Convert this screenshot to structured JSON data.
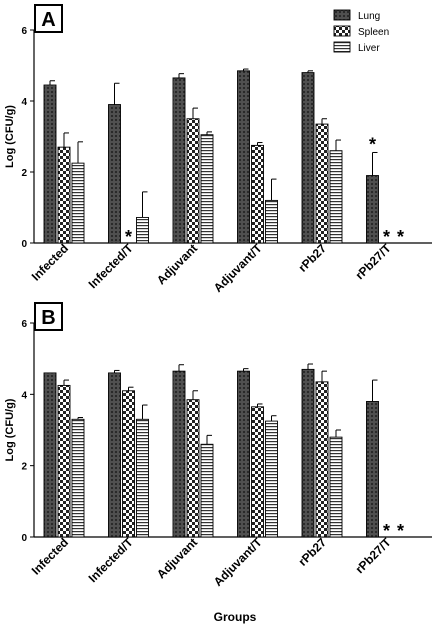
{
  "figure": {
    "ylabel": "Log (CFU/g)",
    "xlabel": "Groups"
  },
  "legend": {
    "placement": "top-right",
    "items": [
      {
        "label": "Lung",
        "pattern": "dark-crosshatch"
      },
      {
        "label": "Spleen",
        "pattern": "checker"
      },
      {
        "label": "Liver",
        "pattern": "horizontal-stripes"
      }
    ]
  },
  "chart_data": [
    {
      "type": "bar",
      "panel_label": "A",
      "categories": [
        "Infected",
        "Infected/T",
        "Adjuvant",
        "Adjuvant/T",
        "rPb27",
        "rPb27/T"
      ],
      "ylim": [
        0,
        6
      ],
      "yticks": [
        "0",
        "2",
        "4",
        "6"
      ],
      "ylabel": "Log (CFU/g)",
      "series": [
        {
          "name": "Lung",
          "values": [
            4.45,
            3.9,
            4.65,
            4.85,
            4.8,
            1.9
          ],
          "errors": [
            0.12,
            0.6,
            0.12,
            0.05,
            0.05,
            0.65
          ]
        },
        {
          "name": "Spleen",
          "values": [
            2.7,
            0,
            3.5,
            2.75,
            3.35,
            0
          ],
          "errors": [
            0.4,
            0,
            0.3,
            0.08,
            0.15,
            0
          ]
        },
        {
          "name": "Liver",
          "values": [
            2.25,
            0.72,
            3.05,
            1.2,
            2.6,
            0
          ],
          "errors": [
            0.6,
            0.72,
            0.08,
            0.6,
            0.3,
            0
          ]
        }
      ],
      "annotations": [
        {
          "category": "Infected/T",
          "series": "Spleen",
          "text": "*"
        },
        {
          "category": "rPb27/T",
          "series": "Lung",
          "text": "*"
        },
        {
          "category": "rPb27/T",
          "series": "Spleen",
          "text": "*"
        },
        {
          "category": "rPb27/T",
          "series": "Liver",
          "text": "*"
        }
      ]
    },
    {
      "type": "bar",
      "panel_label": "B",
      "categories": [
        "Infected",
        "Infected/T",
        "Adjuvant",
        "Adjuvant/T",
        "rPb27",
        "rPb27/T"
      ],
      "ylim": [
        0,
        6
      ],
      "yticks": [
        "0",
        "2",
        "4",
        "6"
      ],
      "ylabel": "Log (CFU/g)",
      "xlabel": "Groups",
      "series": [
        {
          "name": "Lung",
          "values": [
            4.6,
            4.6,
            4.65,
            4.65,
            4.7,
            3.8
          ],
          "errors": [
            0.0,
            0.07,
            0.18,
            0.07,
            0.15,
            0.6
          ]
        },
        {
          "name": "Spleen",
          "values": [
            4.25,
            4.1,
            3.85,
            3.65,
            4.35,
            0
          ],
          "errors": [
            0.15,
            0.1,
            0.25,
            0.08,
            0.3,
            0
          ]
        },
        {
          "name": "Liver",
          "values": [
            3.3,
            3.3,
            2.6,
            3.25,
            2.8,
            0
          ],
          "errors": [
            0.05,
            0.4,
            0.25,
            0.15,
            0.2,
            0
          ]
        }
      ],
      "annotations": [
        {
          "category": "rPb27/T",
          "series": "Spleen",
          "text": "*"
        },
        {
          "category": "rPb27/T",
          "series": "Liver",
          "text": "*"
        }
      ]
    }
  ]
}
